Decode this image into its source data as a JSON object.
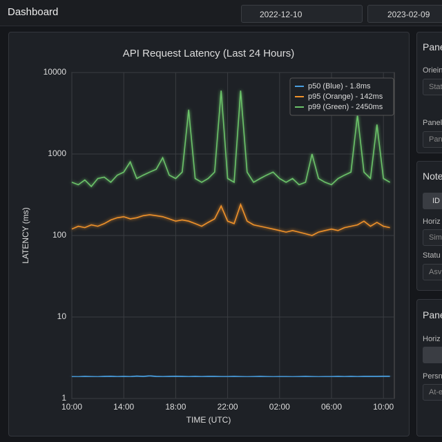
{
  "header": {
    "title": "Dashboard",
    "date_from": "2022-12-10",
    "date_to": "2023-02-09"
  },
  "chart_data": {
    "type": "line",
    "title": "API Request Latency (Last 24 Hours)",
    "x_label": "TIME (UTC)",
    "y_label": "LATENCY (ms)",
    "categories": [
      "10:00",
      null,
      null,
      null,
      null,
      null,
      null,
      null,
      "14:00",
      null,
      null,
      null,
      null,
      null,
      null,
      null,
      "18:00",
      null,
      null,
      null,
      null,
      null,
      null,
      null,
      "22:00",
      null,
      null,
      null,
      null,
      null,
      null,
      null,
      "02:00",
      null,
      null,
      null,
      null,
      null,
      null,
      null,
      "06:00",
      null,
      null,
      null,
      null,
      null,
      null,
      null,
      "10:00",
      null
    ],
    "log_y": true,
    "ylim": [
      1,
      10000
    ],
    "yticks": [
      1,
      10,
      100,
      1000,
      10000
    ],
    "grid": true,
    "legend": "top-right",
    "series": [
      {
        "name": "p50 (Blue) - 1.8ms",
        "color": "#4a9fe0",
        "values": [
          1.85,
          1.84,
          1.86,
          1.85,
          1.84,
          1.86,
          1.87,
          1.85,
          1.86,
          1.85,
          1.88,
          1.86,
          1.9,
          1.86,
          1.85,
          1.86,
          1.87,
          1.86,
          1.85,
          1.86,
          1.85,
          1.86,
          1.86,
          1.85,
          1.85,
          1.86,
          1.85,
          1.84,
          1.85,
          1.86,
          1.85,
          1.84,
          1.85,
          1.85,
          1.84,
          1.85,
          1.86,
          1.85,
          1.84,
          1.85,
          1.85,
          1.86,
          1.85,
          1.86,
          1.85,
          1.86,
          1.86,
          1.86,
          1.87,
          1.87
        ]
      },
      {
        "name": "p95 (Orange) - 142ms",
        "color": "#f0922b",
        "values": [
          120,
          130,
          125,
          135,
          130,
          140,
          155,
          165,
          170,
          160,
          165,
          175,
          180,
          175,
          170,
          160,
          150,
          155,
          150,
          140,
          130,
          145,
          160,
          230,
          150,
          140,
          240,
          150,
          135,
          130,
          125,
          120,
          115,
          110,
          115,
          110,
          105,
          100,
          110,
          115,
          120,
          115,
          125,
          130,
          135,
          150,
          130,
          145,
          130,
          125
        ]
      },
      {
        "name": "p99 (Green) - 2450ms",
        "color": "#6cc46a",
        "values": [
          450,
          420,
          480,
          400,
          500,
          520,
          450,
          550,
          600,
          800,
          500,
          550,
          600,
          650,
          900,
          550,
          500,
          600,
          3500,
          500,
          450,
          500,
          600,
          6000,
          500,
          450,
          6000,
          600,
          450,
          500,
          550,
          600,
          500,
          450,
          500,
          420,
          450,
          1000,
          500,
          450,
          420,
          500,
          550,
          600,
          3000,
          600,
          500,
          2300,
          500,
          450
        ]
      }
    ]
  },
  "side_panels": [
    {
      "title": "Pane",
      "items": [
        "Oriein",
        "Stat",
        "Panel",
        "Pan"
      ]
    },
    {
      "title": "Note",
      "items": [
        "Horiz",
        "Sim",
        "Statu",
        "Asv"
      ],
      "button": "ID"
    },
    {
      "title": "Pane",
      "items": [
        "Horiz",
        "Persn",
        "At-e"
      ]
    }
  ]
}
